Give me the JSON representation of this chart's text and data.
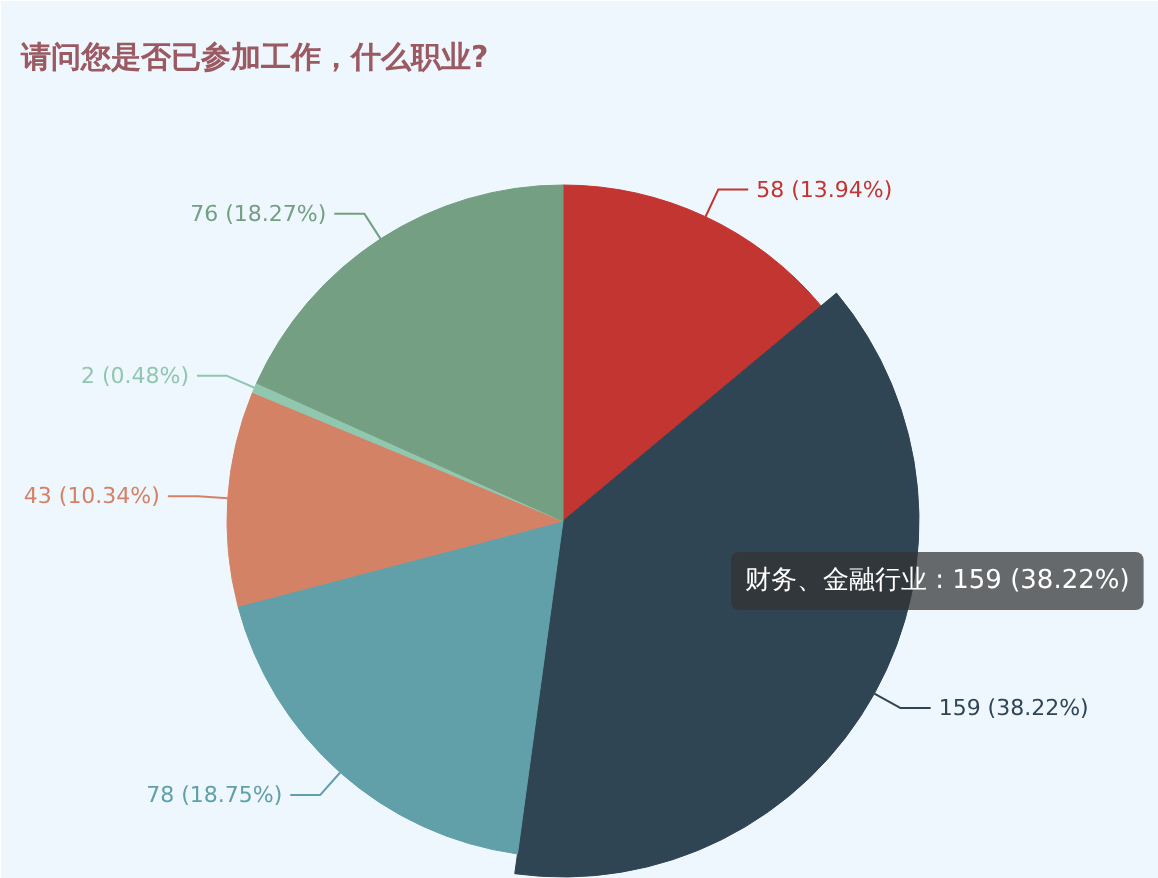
{
  "chart_data": {
    "type": "pie",
    "title": "请问您是否已参加工作，什么职业?",
    "categories": [
      null,
      "财务、金融行业",
      null,
      null,
      null,
      null
    ],
    "values": [
      58,
      159,
      78,
      43,
      2,
      76
    ],
    "colors": [
      "#c23531",
      "#2f4554",
      "#61a0a8",
      "#d48265",
      "#91c7ae",
      "#749f83"
    ],
    "value_labels": [
      "58 (13.94%)",
      "159 (38.22%)",
      "78 (18.75%)",
      "43 (10.34%)",
      "2 (0.48%)",
      "76 (18.27%)"
    ]
  }
}
